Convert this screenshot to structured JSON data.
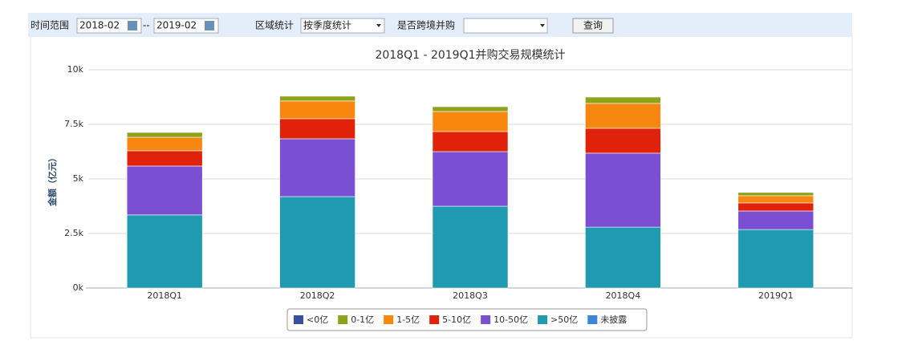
{
  "toolbar": {
    "time_label": "时间范围",
    "start": "2018-02",
    "separator": "--",
    "end": "2019-02",
    "region_label": "区域统计",
    "region_value": "按季度统计",
    "cross_border_label": "是否跨境并购",
    "query_button": "查询"
  },
  "chart_data": {
    "type": "stacked-bar",
    "title": "2018Q1 - 2019Q1并购交易规模统计",
    "y_label": "金额（亿元）",
    "categories": [
      "2018Q1",
      "2018Q2",
      "2018Q3",
      "2018Q4",
      "2019Q1"
    ],
    "series": [
      {
        "name": "<0亿",
        "color": "#3a4fa0",
        "values": [
          0,
          0,
          0,
          0,
          0
        ]
      },
      {
        "name": "0-1亿",
        "color": "#8da31a",
        "values": [
          220,
          220,
          220,
          290,
          150
        ]
      },
      {
        "name": "1-5亿",
        "color": "#f7870f",
        "values": [
          620,
          810,
          920,
          1140,
          330
        ]
      },
      {
        "name": "5-10亿",
        "color": "#e0220a",
        "values": [
          700,
          920,
          920,
          1140,
          370
        ]
      },
      {
        "name": "10-50亿",
        "color": "#7b4fd1",
        "values": [
          2240,
          2650,
          2500,
          3390,
          850
        ]
      },
      {
        "name": ">50亿",
        "color": "#1f9ab1",
        "values": [
          3350,
          4190,
          3750,
          2790,
          2680
        ]
      },
      {
        "name": "未披露",
        "color": "#3c84d8",
        "values": [
          0,
          0,
          0,
          0,
          0
        ]
      }
    ],
    "ylim": [
      0,
      10000
    ],
    "yticks": [
      {
        "value": 0,
        "label": "0k"
      },
      {
        "value": 2500,
        "label": "2.5k"
      },
      {
        "value": 5000,
        "label": "5k"
      },
      {
        "value": 7500,
        "label": "7.5k"
      },
      {
        "value": 10000,
        "label": "10k"
      }
    ],
    "grid": true
  }
}
